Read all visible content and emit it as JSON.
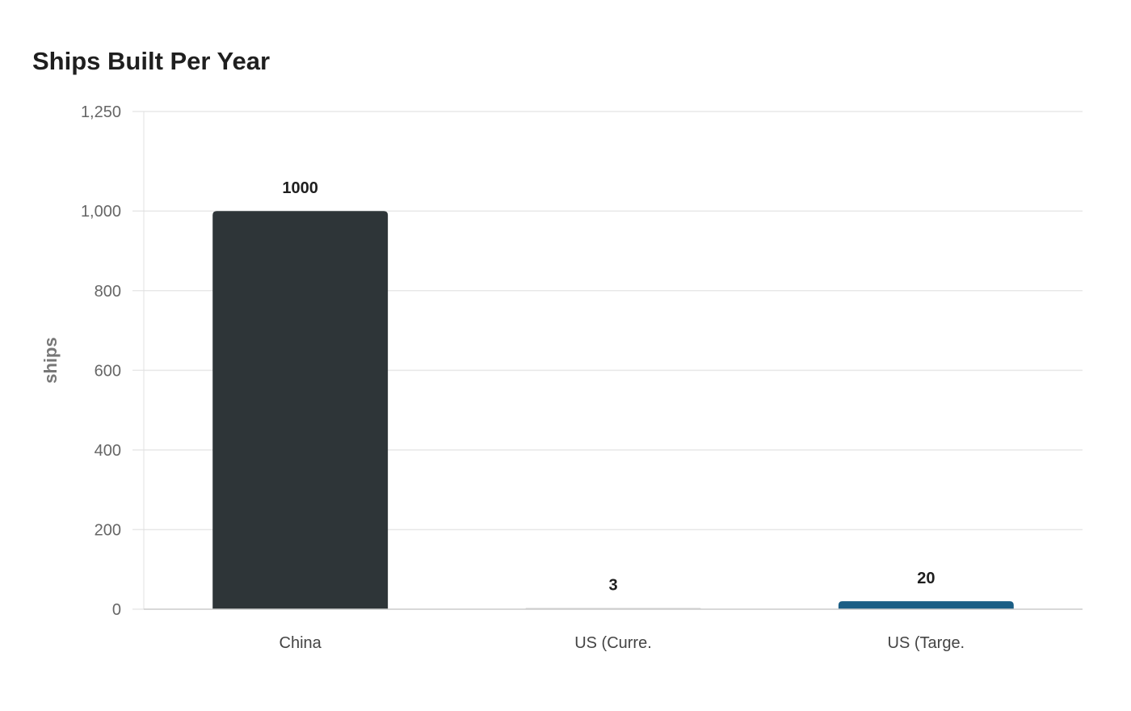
{
  "chart_data": {
    "type": "bar",
    "title": "Ships Built Per Year",
    "ylabel": "ships",
    "xlabel": "",
    "categories": [
      "China",
      "US (Curre.",
      "US (Targe."
    ],
    "values": [
      1000,
      3,
      20
    ],
    "value_labels": [
      "1000",
      "3",
      "20"
    ],
    "bar_colors": [
      "#2e3538",
      "#d0d0d0",
      "#1b5e85"
    ],
    "ylim": [
      0,
      1250
    ],
    "yticks": [
      0,
      200,
      400,
      600,
      800,
      1000,
      1250
    ],
    "ytick_labels": [
      "0",
      "200",
      "400",
      "600",
      "800",
      "1,000",
      "1,250"
    ],
    "grid": true,
    "legend": "none"
  },
  "colors": {
    "grid": "#e8e8e8",
    "axis": "#cccccc"
  }
}
